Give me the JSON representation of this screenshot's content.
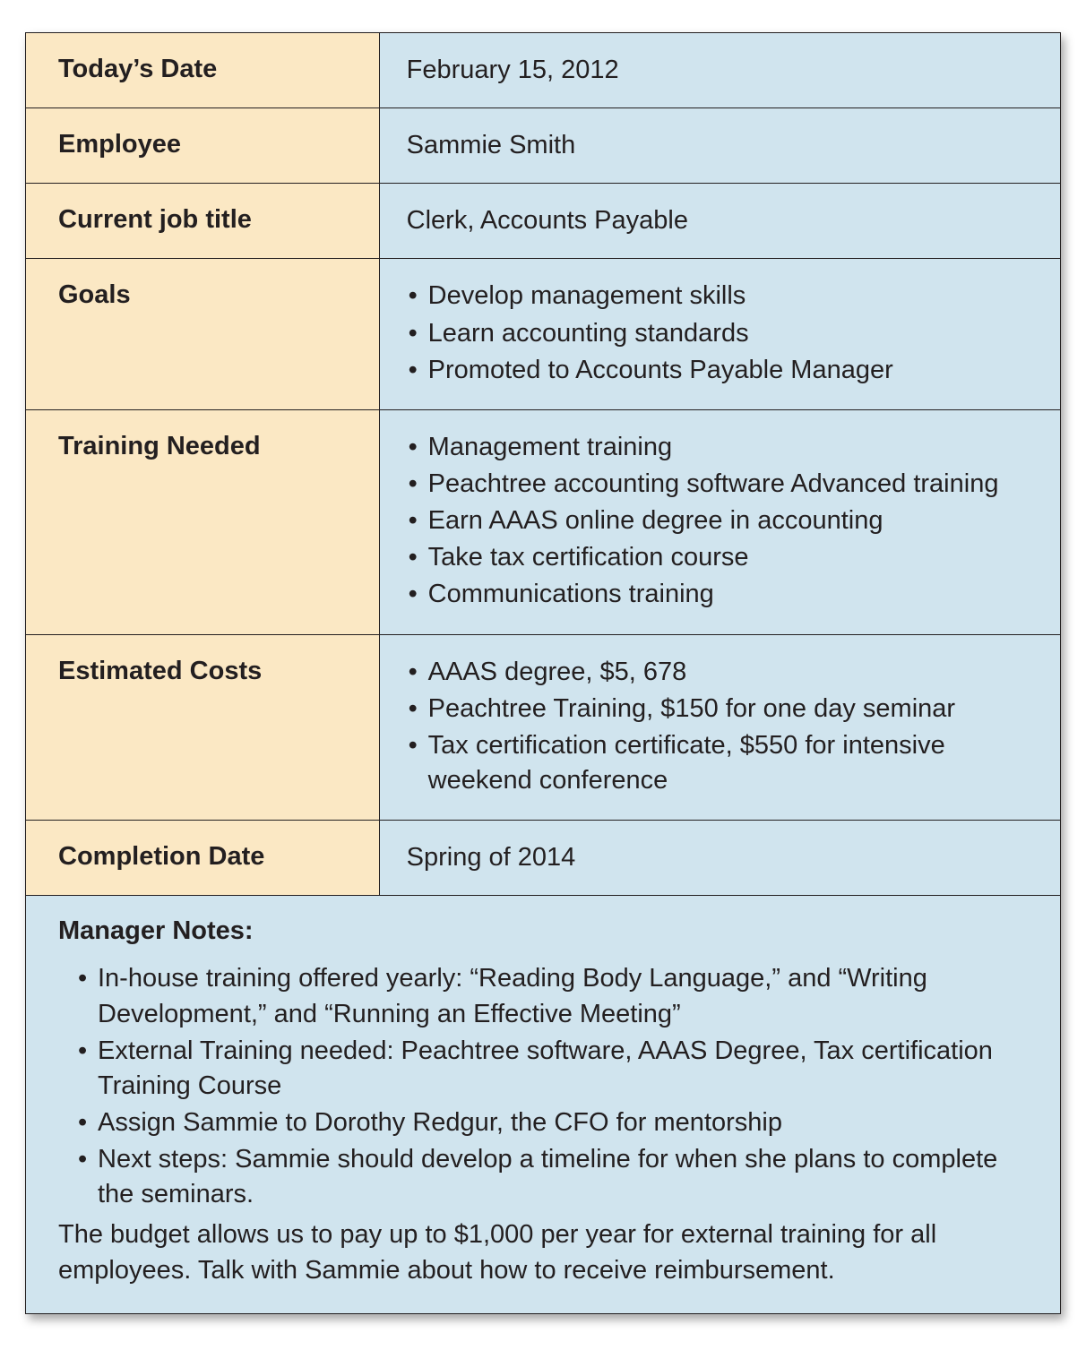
{
  "colors": {
    "label_bg": "#fbe8c4",
    "value_bg": "#d0e4ee",
    "border": "#231f20",
    "text": "#231f20",
    "page_bg": "#ffffff"
  },
  "typography": {
    "base_fontsize_pt": 22,
    "label_weight": 700,
    "value_weight": 400,
    "font_family": "Myriad Pro, Segoe UI, Helvetica Neue, Arial, sans-serif"
  },
  "layout": {
    "label_col_width_pct": 34.2,
    "card_shadow": "4px 6px 10px rgba(0,0,0,0.35)"
  },
  "rows": [
    {
      "label": "Today’s Date",
      "type": "text",
      "value": "February 15, 2012"
    },
    {
      "label": "Employee",
      "type": "text",
      "value": "Sammie Smith"
    },
    {
      "label": "Current job title",
      "type": "text",
      "value": "Clerk, Accounts Payable"
    },
    {
      "label": "Goals",
      "type": "list",
      "items": [
        "Develop management skills",
        "Learn accounting standards",
        "Promoted to Accounts Payable Manager"
      ]
    },
    {
      "label": "Training Needed",
      "type": "list",
      "items": [
        "Management training",
        "Peachtree accounting software Advanced training",
        "Earn AAAS online degree in accounting",
        "Take tax certification course",
        "Communications training"
      ]
    },
    {
      "label": "Estimated Costs",
      "type": "list",
      "items": [
        "AAAS degree, $5, 678",
        "Peachtree Training, $150 for one day seminar",
        "Tax certification certificate, $550 for intensive weekend conference"
      ]
    },
    {
      "label": "Completion Date",
      "type": "text",
      "value": "Spring of 2014"
    }
  ],
  "notes": {
    "title": "Manager Notes:",
    "items": [
      "In-house training offered yearly:  “Reading Body Language,” and “Writing Development,” and  “Running an Effective Meeting”",
      "External Training needed:  Peachtree software, AAAS Degree, Tax certification Training Course",
      "Assign Sammie to Dorothy Redgur, the CFO for mentorship",
      "Next steps: Sammie should develop a timeline for when she plans to complete the seminars."
    ],
    "footer": "The budget allows us to pay up to $1,000 per year for external training for all employees.  Talk with Sammie about how to receive reimbursement."
  }
}
